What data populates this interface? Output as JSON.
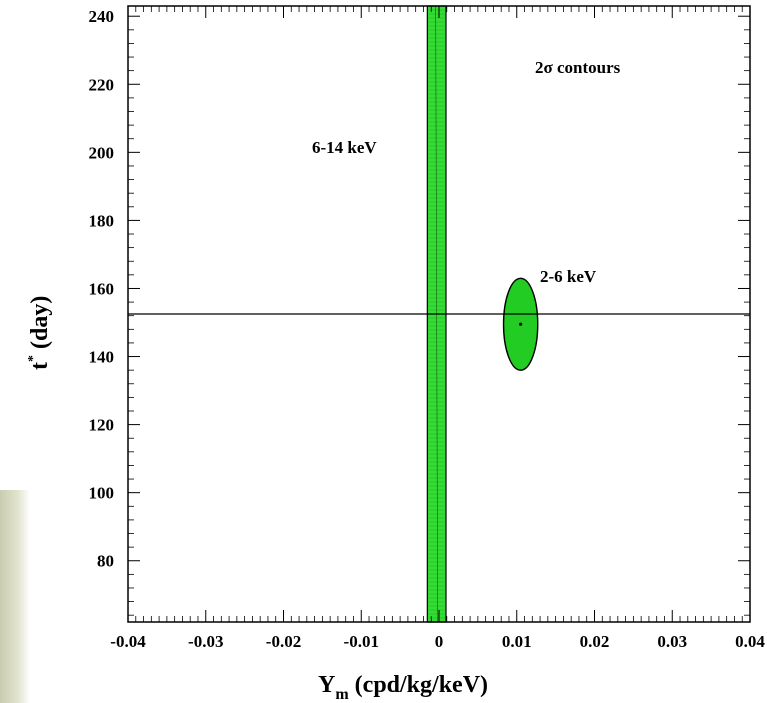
{
  "chart_data": {
    "type": "contour",
    "title": "2σ contours",
    "xlabel_main": "Y",
    "xlabel_sub": "m",
    "xlabel_rest": " (cpd/kg/keV)",
    "ylabel_main": "t",
    "ylabel_sup": "*",
    "ylabel_rest": " (day)",
    "xlim": [
      -0.04,
      0.04
    ],
    "ylim": [
      62,
      243
    ],
    "x_ticks": [
      -0.04,
      -0.03,
      -0.02,
      -0.01,
      0,
      0.01,
      0.02,
      0.03,
      0.04
    ],
    "x_tick_labels": [
      "-0.04",
      "-0.03",
      "-0.02",
      "-0.01",
      "0",
      "0.01",
      "0.02",
      "0.03",
      "0.04"
    ],
    "y_ticks": [
      80,
      100,
      120,
      140,
      160,
      180,
      200,
      220,
      240
    ],
    "y_tick_labels": [
      "80",
      "100",
      "120",
      "140",
      "160",
      "180",
      "200",
      "220",
      "240"
    ],
    "reference_line_y": 152.5,
    "contours": [
      {
        "label": "6-14 keV",
        "shape": "band",
        "x_min": -0.0015,
        "x_max": 0.0009,
        "fill": "#33dd33"
      },
      {
        "label": "2-6 keV",
        "shape": "ellipse",
        "center_x": 0.0105,
        "center_y": 149.5,
        "half_width_x": 0.0022,
        "half_height_y": 13.5,
        "fill": "#22cc22",
        "center_point": true
      }
    ],
    "grid": false
  }
}
